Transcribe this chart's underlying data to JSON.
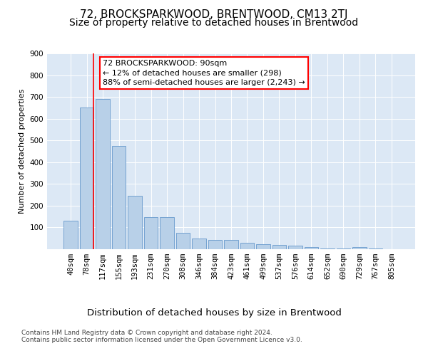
{
  "title": "72, BROCKSPARKWOOD, BRENTWOOD, CM13 2TJ",
  "subtitle": "Size of property relative to detached houses in Brentwood",
  "xlabel": "Distribution of detached houses by size in Brentwood",
  "ylabel": "Number of detached properties",
  "bar_labels": [
    "40sqm",
    "78sqm",
    "117sqm",
    "155sqm",
    "193sqm",
    "231sqm",
    "270sqm",
    "308sqm",
    "346sqm",
    "384sqm",
    "423sqm",
    "461sqm",
    "499sqm",
    "537sqm",
    "576sqm",
    "614sqm",
    "652sqm",
    "690sqm",
    "729sqm",
    "767sqm",
    "805sqm"
  ],
  "bar_values": [
    130,
    650,
    690,
    475,
    245,
    148,
    148,
    75,
    50,
    42,
    42,
    30,
    22,
    20,
    18,
    10,
    3,
    2,
    10,
    2,
    0
  ],
  "bar_color": "#b8d0e8",
  "bar_edge_color": "#6699cc",
  "ylim": [
    0,
    900
  ],
  "yticks": [
    0,
    100,
    200,
    300,
    400,
    500,
    600,
    700,
    800,
    900
  ],
  "background_color": "#dce8f5",
  "annotation_line1": "72 BROCKSPARKWOOD: 90sqm",
  "annotation_line2": "← 12% of detached houses are smaller (298)",
  "annotation_line3": "88% of semi-detached houses are larger (2,243) →",
  "red_line_index": 1.43,
  "footer_text": "Contains HM Land Registry data © Crown copyright and database right 2024.\nContains public sector information licensed under the Open Government Licence v3.0.",
  "title_fontsize": 11,
  "subtitle_fontsize": 10,
  "xlabel_fontsize": 9.5,
  "ylabel_fontsize": 8,
  "tick_fontsize": 7.5,
  "annotation_fontsize": 8,
  "footer_fontsize": 6.5
}
